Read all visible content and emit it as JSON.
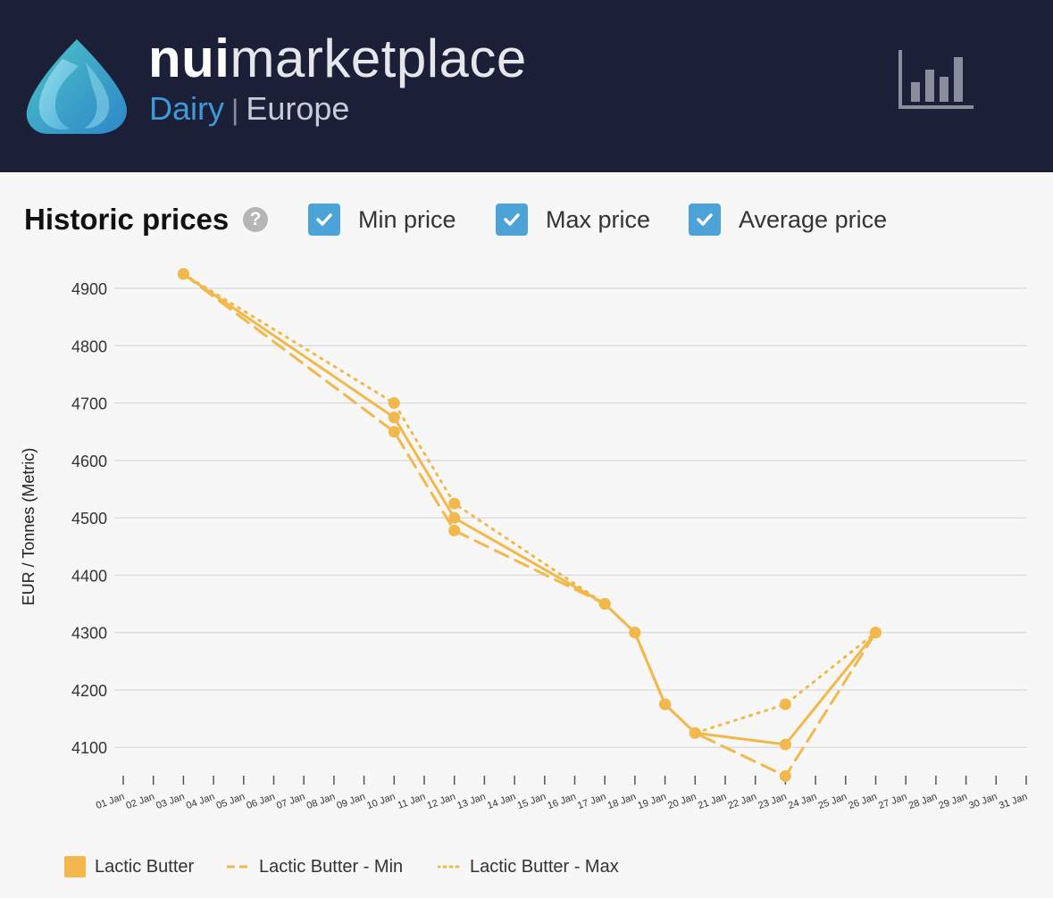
{
  "header": {
    "brand_bold": "nui",
    "brand_light": "marketplace",
    "sub_primary": "Dairy",
    "sub_separator": "|",
    "sub_secondary": "Europe",
    "icons": {
      "logo": "droplet-logo",
      "chart": "bar-chart-icon"
    }
  },
  "panel": {
    "title": "Historic prices",
    "help_glyph": "?",
    "toggles": [
      {
        "label": "Min price",
        "checked": true
      },
      {
        "label": "Max price",
        "checked": true
      },
      {
        "label": "Average price",
        "checked": true
      }
    ]
  },
  "colors": {
    "header_bg": "#1b2038",
    "accent_blue": "#4ba3d8",
    "series": "#f2b84b",
    "grid": "#dddddd"
  },
  "chart_data": {
    "type": "line",
    "ylabel": "EUR / Tonnes (Metric)",
    "xlabel": "",
    "categories": [
      "01 Jan",
      "02 Jan",
      "03 Jan",
      "04 Jan",
      "05 Jan",
      "06 Jan",
      "07 Jan",
      "08 Jan",
      "09 Jan",
      "10 Jan",
      "11 Jan",
      "12 Jan",
      "13 Jan",
      "14 Jan",
      "15 Jan",
      "16 Jan",
      "17 Jan",
      "18 Jan",
      "19 Jan",
      "20 Jan",
      "21 Jan",
      "22 Jan",
      "23 Jan",
      "24 Jan",
      "25 Jan",
      "26 Jan",
      "27 Jan",
      "28 Jan",
      "29 Jan",
      "30 Jan",
      "31 Jan"
    ],
    "ylim": [
      4050,
      4930
    ],
    "yticks": [
      4100,
      4200,
      4300,
      4400,
      4500,
      4600,
      4700,
      4800,
      4900
    ],
    "grid": true,
    "legend_position": "bottom-left",
    "series": [
      {
        "name": "Lactic Butter",
        "style": "solid",
        "markers": true,
        "points": [
          [
            "03 Jan",
            4925
          ],
          [
            "10 Jan",
            4675
          ],
          [
            "12 Jan",
            4500
          ],
          [
            "17 Jan",
            4350
          ],
          [
            "18 Jan",
            4300
          ],
          [
            "19 Jan",
            4175
          ],
          [
            "20 Jan",
            4125
          ],
          [
            "23 Jan",
            4105
          ],
          [
            "26 Jan",
            4300
          ]
        ]
      },
      {
        "name": "Lactic Butter - Min",
        "style": "dashed",
        "markers": true,
        "points": [
          [
            "03 Jan",
            4925
          ],
          [
            "10 Jan",
            4650
          ],
          [
            "12 Jan",
            4478
          ],
          [
            "17 Jan",
            4350
          ],
          [
            "18 Jan",
            4300
          ],
          [
            "19 Jan",
            4175
          ],
          [
            "20 Jan",
            4125
          ],
          [
            "23 Jan",
            4050
          ],
          [
            "26 Jan",
            4300
          ]
        ]
      },
      {
        "name": "Lactic Butter - Max",
        "style": "dotted",
        "markers": true,
        "points": [
          [
            "03 Jan",
            4925
          ],
          [
            "10 Jan",
            4700
          ],
          [
            "12 Jan",
            4525
          ],
          [
            "17 Jan",
            4350
          ],
          [
            "18 Jan",
            4300
          ],
          [
            "19 Jan",
            4175
          ],
          [
            "20 Jan",
            4125
          ],
          [
            "23 Jan",
            4175
          ],
          [
            "26 Jan",
            4300
          ]
        ]
      }
    ]
  }
}
